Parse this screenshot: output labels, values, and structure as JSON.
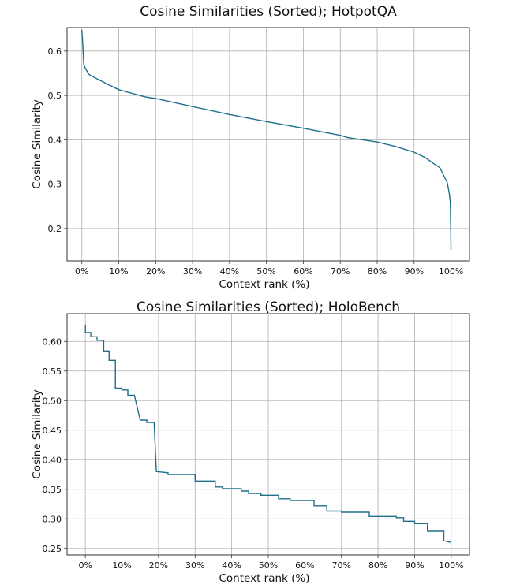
{
  "chart_data": [
    {
      "type": "line",
      "title": "Cosine Similarities (Sorted); HotpotQA",
      "xlabel": "Context rank (%)",
      "ylabel": "Cosine Similarity",
      "xlim": [
        -4,
        105
      ],
      "ylim": [
        0.127,
        0.653
      ],
      "xticks": [
        0,
        10,
        20,
        30,
        40,
        50,
        60,
        70,
        80,
        90,
        100
      ],
      "xtick_labels": [
        "0%",
        "10%",
        "20%",
        "30%",
        "40%",
        "50%",
        "60%",
        "70%",
        "80%",
        "90%",
        "100%"
      ],
      "yticks": [
        0.2,
        0.3,
        0.4,
        0.5,
        0.6
      ],
      "ytick_labels": [
        "0.2",
        "0.3",
        "0.4",
        "0.5",
        "0.6"
      ],
      "grid": true,
      "color": "#1f6f8b",
      "series": [
        {
          "name": "HotpotQA",
          "x": [
            0,
            0.3,
            0.5,
            1,
            2,
            4,
            7,
            10,
            17,
            20,
            30,
            40,
            50,
            60,
            70,
            72,
            80,
            85,
            90,
            93,
            95,
            97,
            98,
            99,
            99.5,
            99.8,
            100
          ],
          "y": [
            0.648,
            0.61,
            0.57,
            0.56,
            0.547,
            0.538,
            0.525,
            0.513,
            0.497,
            0.493,
            0.475,
            0.457,
            0.441,
            0.426,
            0.41,
            0.405,
            0.395,
            0.385,
            0.372,
            0.36,
            0.348,
            0.337,
            0.32,
            0.303,
            0.28,
            0.259,
            0.152
          ]
        }
      ]
    },
    {
      "type": "line",
      "title": "Cosine Similarities (Sorted); HoloBench",
      "xlabel": "Context rank (%)",
      "ylabel": "Cosine Similarity",
      "xlim": [
        -5,
        105
      ],
      "ylim": [
        0.239,
        0.647
      ],
      "xticks": [
        0,
        10,
        20,
        30,
        40,
        50,
        60,
        70,
        80,
        90,
        100
      ],
      "xtick_labels": [
        "0%",
        "10%",
        "20%",
        "30%",
        "40%",
        "50%",
        "60%",
        "70%",
        "80%",
        "90%",
        "100%"
      ],
      "yticks": [
        0.25,
        0.3,
        0.35,
        0.4,
        0.45,
        0.5,
        0.55,
        0.6
      ],
      "ytick_labels": [
        "0.25",
        "0.30",
        "0.35",
        "0.40",
        "0.45",
        "0.50",
        "0.55",
        "0.60"
      ],
      "grid": true,
      "color": "#1f6f8b",
      "series": [
        {
          "name": "HoloBench",
          "x": [
            0,
            0,
            1.5,
            1.5,
            3.2,
            3.2,
            5,
            5,
            6.5,
            6.5,
            8.2,
            8.2,
            10,
            10,
            11.6,
            11.6,
            13.4,
            15,
            16.8,
            16.8,
            18.8,
            19.4,
            22.6,
            22.6,
            30,
            30,
            35.5,
            35.5,
            37.5,
            37.5,
            42.6,
            42.6,
            44.6,
            44.6,
            48,
            48,
            52.8,
            52.8,
            56,
            56,
            62.5,
            62.5,
            66,
            66,
            70,
            70,
            77.6,
            77.6,
            85,
            85,
            87,
            87,
            90,
            90,
            93.5,
            93.5,
            98,
            98,
            100
          ],
          "y": [
            0.627,
            0.615,
            0.615,
            0.608,
            0.608,
            0.602,
            0.602,
            0.584,
            0.584,
            0.568,
            0.568,
            0.521,
            0.521,
            0.518,
            0.518,
            0.509,
            0.509,
            0.467,
            0.467,
            0.463,
            0.463,
            0.38,
            0.378,
            0.375,
            0.375,
            0.364,
            0.364,
            0.354,
            0.354,
            0.351,
            0.351,
            0.347,
            0.347,
            0.343,
            0.343,
            0.34,
            0.34,
            0.334,
            0.334,
            0.331,
            0.331,
            0.322,
            0.322,
            0.313,
            0.313,
            0.311,
            0.311,
            0.304,
            0.304,
            0.302,
            0.302,
            0.296,
            0.296,
            0.292,
            0.292,
            0.279,
            0.279,
            0.263,
            0.26
          ]
        }
      ]
    }
  ]
}
